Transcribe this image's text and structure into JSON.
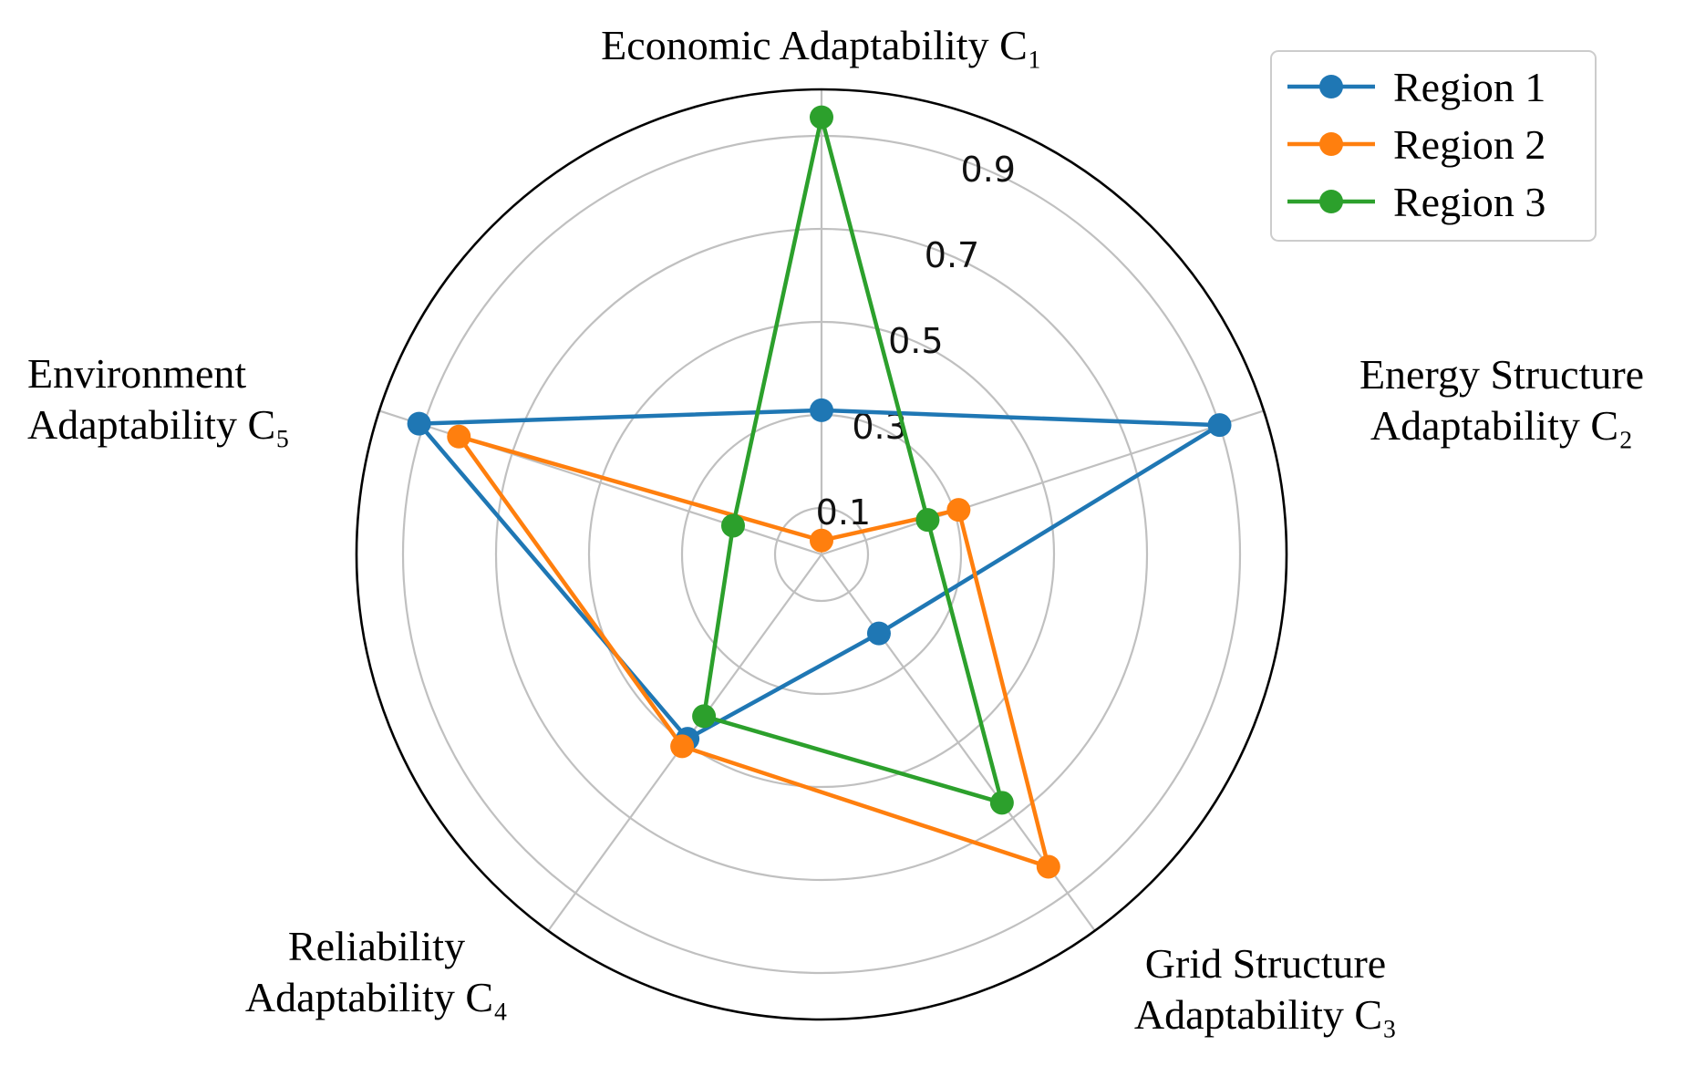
{
  "chart_data": {
    "type": "radar",
    "axes": [
      [
        "Economic Adaptability C₁"
      ],
      [
        "Energy Structure",
        "Adaptability C₂"
      ],
      [
        "Grid Structure",
        "Adaptability C₃"
      ],
      [
        "Reliability",
        "Adaptability  C₄"
      ],
      [
        "Environment",
        "Adaptability C₅"
      ]
    ],
    "rlim": [
      0,
      1.0
    ],
    "rticks": [
      0.1,
      0.3,
      0.5,
      0.7,
      0.9
    ],
    "rtick_labels": [
      "0.1",
      "0.3",
      "0.5",
      "0.7",
      "0.9"
    ],
    "grid": true,
    "legend_position": "top-right",
    "series": [
      {
        "name": "Region 1",
        "color": "#1f77b4",
        "values": [
          0.31,
          0.9,
          0.21,
          0.49,
          0.91
        ]
      },
      {
        "name": "Region 2",
        "color": "#ff7f0e",
        "values": [
          0.03,
          0.31,
          0.83,
          0.51,
          0.82
        ]
      },
      {
        "name": "Region 3",
        "color": "#2ca02c",
        "values": [
          0.94,
          0.24,
          0.66,
          0.43,
          0.2
        ]
      }
    ]
  }
}
